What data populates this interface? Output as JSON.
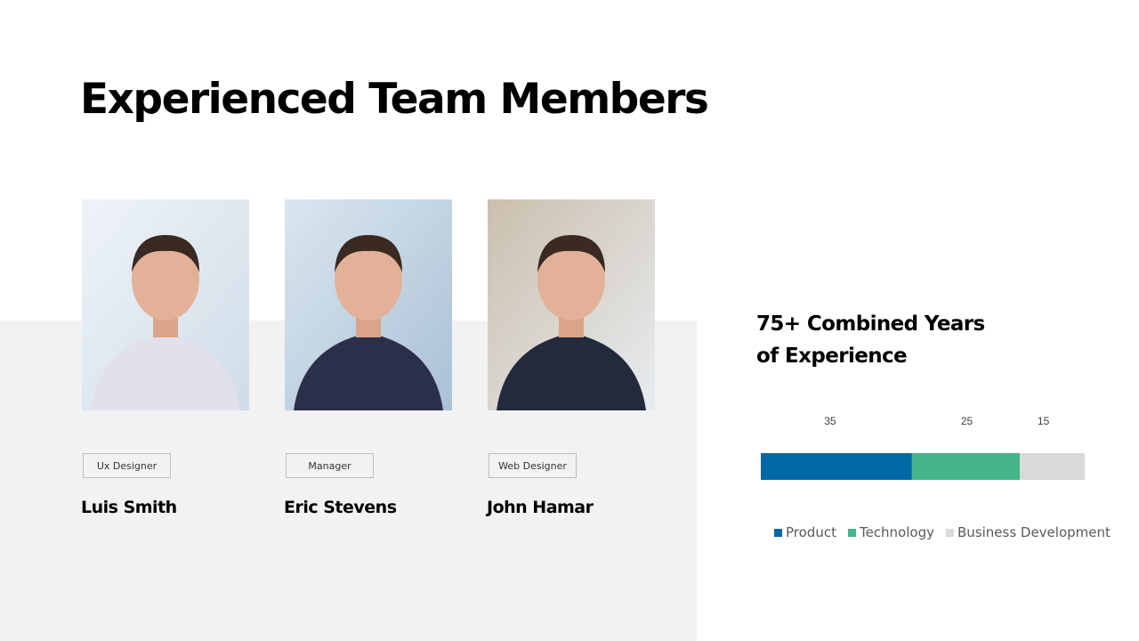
{
  "slide": {
    "title": "Experienced Team Members"
  },
  "members": [
    {
      "role": "Ux Designer",
      "name": "Luis Smith",
      "suit": "#e3e0ee",
      "bg1": "#eef3f8",
      "bg2": "#cfdde8"
    },
    {
      "role": "Manager",
      "name": "Eric Stevens",
      "suit": "#2c2f4a",
      "bg1": "#dbe6ef",
      "bg2": "#a9c1d6"
    },
    {
      "role": "Web Designer",
      "name": "John Hamar",
      "suit": "#232a3e",
      "bg1": "#cbbfae",
      "bg2": "#e8ecf0"
    }
  ],
  "experience": {
    "title_line1": "75+ Combined Years",
    "title_line2": "of Experience"
  },
  "chart_data": {
    "type": "bar",
    "orientation": "horizontal-stacked",
    "categories": [
      ""
    ],
    "series": [
      {
        "name": "Product",
        "values": [
          35
        ],
        "color": "#0068a3"
      },
      {
        "name": "Technology",
        "values": [
          25
        ],
        "color": "#45b68a"
      },
      {
        "name": "Business Development",
        "values": [
          15
        ],
        "color": "#d9d9d9"
      }
    ],
    "data_labels": [
      "35",
      "25",
      "15"
    ],
    "legend_placement": "bottom",
    "grid": false
  }
}
